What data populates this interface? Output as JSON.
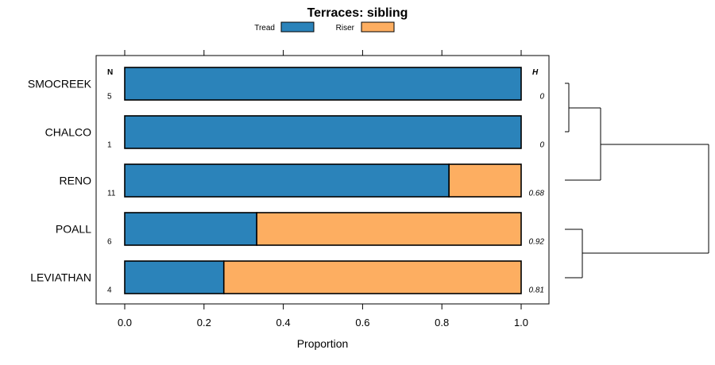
{
  "chart_data": {
    "type": "bar",
    "stacked": true,
    "orientation": "horizontal",
    "title": "Terraces: sibling",
    "xlabel": "Proportion",
    "ylabel": "",
    "xlim": [
      0,
      1
    ],
    "xticks": [
      "0.0",
      "0.2",
      "0.4",
      "0.6",
      "0.8",
      "1.0"
    ],
    "categories": [
      "SMOCREEK",
      "CHALCO",
      "RENO",
      "POALL",
      "LEVIATHAN"
    ],
    "series": [
      {
        "name": "Tread",
        "color": "#2b83ba",
        "values": [
          1.0,
          1.0,
          0.818,
          0.333,
          0.25
        ]
      },
      {
        "name": "Riser",
        "color": "#fdae61",
        "values": [
          0.0,
          0.0,
          0.182,
          0.667,
          0.75
        ]
      }
    ],
    "n_header": "N",
    "h_header": "H",
    "n_values": [
      "5",
      "1",
      "11",
      "6",
      "4"
    ],
    "h_values": [
      "0",
      "0",
      "0.68",
      "0.92",
      "0.81"
    ],
    "legend_position": "top"
  }
}
